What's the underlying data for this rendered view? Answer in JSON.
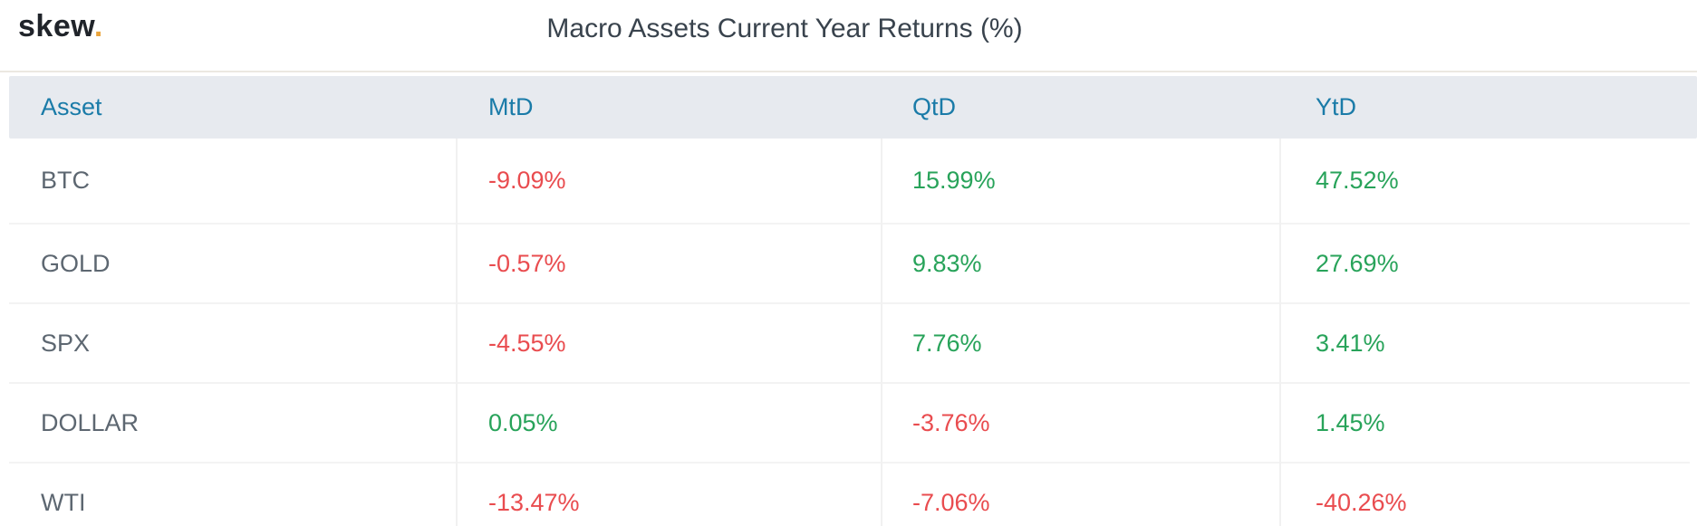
{
  "logo": {
    "text": "skew",
    "dot": "."
  },
  "title": "Macro Assets Current Year Returns (%)",
  "table": {
    "columns": [
      "Asset",
      "MtD",
      "QtD",
      "YtD"
    ],
    "rows": [
      {
        "asset": "BTC",
        "mtd": "-9.09%",
        "qtd": "15.99%",
        "ytd": "47.52%"
      },
      {
        "asset": "GOLD",
        "mtd": "-0.57%",
        "qtd": "9.83%",
        "ytd": "27.69%"
      },
      {
        "asset": "SPX",
        "mtd": "-4.55%",
        "qtd": "7.76%",
        "ytd": "3.41%"
      },
      {
        "asset": "DOLLAR",
        "mtd": "0.05%",
        "qtd": "-3.76%",
        "ytd": "1.45%"
      },
      {
        "asset": "WTI",
        "mtd": "-13.47%",
        "qtd": "-7.06%",
        "ytd": "-40.26%"
      }
    ]
  },
  "chart_data": {
    "type": "table",
    "title": "Macro Assets Current Year Returns (%)",
    "categories": [
      "BTC",
      "GOLD",
      "SPX",
      "DOLLAR",
      "WTI"
    ],
    "series": [
      {
        "name": "MtD",
        "values": [
          -9.09,
          -0.57,
          -4.55,
          0.05,
          -13.47
        ]
      },
      {
        "name": "QtD",
        "values": [
          15.99,
          9.83,
          7.76,
          -3.76,
          -7.06
        ]
      },
      {
        "name": "YtD",
        "values": [
          47.52,
          27.69,
          3.41,
          1.45,
          -40.26
        ]
      }
    ]
  },
  "colors": {
    "positive": "#28a35a",
    "negative": "#e94c4f",
    "header_text": "#1a7ba8",
    "header_bg": "#e7eaef",
    "asset_text": "#5d6771",
    "title_text": "#39434d",
    "logo_text": "#20242a",
    "logo_dot": "#eaa43c",
    "row_divider": "#f3f3f3",
    "col_divider": "#f1f1f1",
    "top_rule": "#ece8e1"
  }
}
